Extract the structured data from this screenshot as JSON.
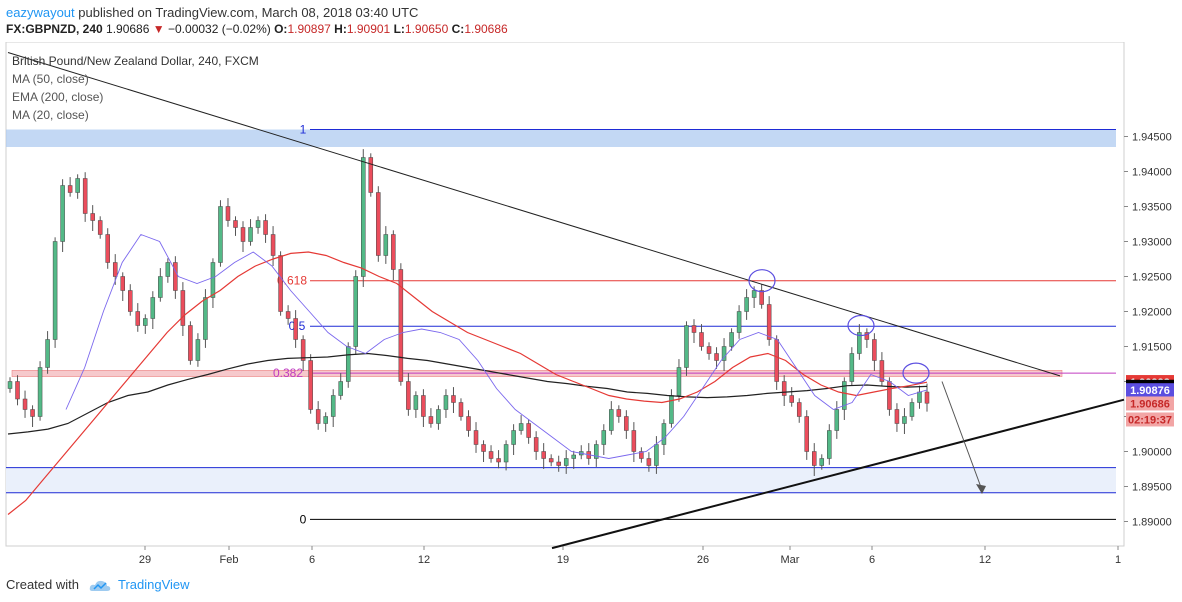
{
  "header": {
    "author": "eazywayout",
    "published_text": "published on TradingView.com, March 08, 2018 03:40 UTC",
    "symbol": "FX:GBPNZD, 240",
    "last_price": "1.90686",
    "change": "−0.00032 (−0.02%)",
    "open_label": "O:",
    "open": "1.90897",
    "high_label": "H:",
    "high": "1.90901",
    "low_label": "L:",
    "low": "1.90650",
    "close_label": "C:",
    "close": "1.90686"
  },
  "legend": {
    "title": "British Pound/New Zealand Dollar, 240, FXCM",
    "ma50": "MA (50, close)",
    "ema200": "EMA (200, close)",
    "ma20": "MA (20, close)"
  },
  "footer": {
    "created_with": "Created with",
    "brand": "TradingView"
  },
  "colors": {
    "bull": "#53b987",
    "bear": "#eb4d5c",
    "ma50": "#e53935",
    "ema200": "#222222",
    "ma20": "#7b68ee",
    "fib_1": "#1e2bd6",
    "fib_0618": "#e53935",
    "fib_05": "#1e2bd6",
    "fib_0382": "#c03cc0",
    "fib_0": "#000000"
  },
  "chart_data": {
    "type": "candlestick",
    "symbol": "GBPNZD",
    "timeframe": "240",
    "ylim": [
      1.8865,
      1.9585
    ],
    "y_ticks": [
      "1.89000",
      "1.89500",
      "1.90000",
      "1.90500",
      "1.91000",
      "1.91500",
      "1.92000",
      "1.92500",
      "1.93000",
      "1.93500",
      "1.94000",
      "1.94500"
    ],
    "x_ticks": [
      "29",
      "Feb",
      "6",
      "12",
      "19",
      "26",
      "Mar",
      "6",
      "12",
      "1"
    ],
    "fib_levels": [
      {
        "label": "1",
        "price": 1.946
      },
      {
        "label": "0.618",
        "price": 1.9244
      },
      {
        "label": "0.5",
        "price": 1.9179
      },
      {
        "label": "0.382",
        "price": 1.9112
      },
      {
        "label": "0",
        "price": 1.8903
      }
    ],
    "price_labels": [
      {
        "value": "1.90992",
        "color": "#e53935",
        "text_color": "#ffffff"
      },
      {
        "value": "1.90925",
        "color": "#000000",
        "text_color": "#ffffff"
      },
      {
        "value": "1.90876",
        "color": "#5b4ee0",
        "text_color": "#ffffff"
      },
      {
        "value": "1.90686",
        "color": "#f2a5a5",
        "text_color": "#c62828"
      },
      {
        "value": "02:19:37",
        "color": "#f2a5a5",
        "text_color": "#c62828"
      }
    ],
    "closes": [
      1.91,
      1.9075,
      1.906,
      1.905,
      1.912,
      1.916,
      1.93,
      1.938,
      1.937,
      1.939,
      1.934,
      1.933,
      1.931,
      1.927,
      1.925,
      1.923,
      1.92,
      1.918,
      1.919,
      1.922,
      1.925,
      1.927,
      1.923,
      1.918,
      1.913,
      1.916,
      1.922,
      1.927,
      1.935,
      1.933,
      1.932,
      1.93,
      1.932,
      1.933,
      1.931,
      1.928,
      1.92,
      1.919,
      1.916,
      1.913,
      1.906,
      1.904,
      1.905,
      1.908,
      1.91,
      1.915,
      1.925,
      1.942,
      1.937,
      1.928,
      1.931,
      1.926,
      1.91,
      1.906,
      1.908,
      1.905,
      1.904,
      1.906,
      1.908,
      1.907,
      1.905,
      1.903,
      1.901,
      1.9,
      1.899,
      1.8985,
      1.901,
      1.903,
      1.904,
      1.902,
      1.9,
      1.899,
      1.8985,
      1.898,
      1.899,
      1.8995,
      1.9,
      1.899,
      1.901,
      1.903,
      1.906,
      1.905,
      1.903,
      1.9,
      1.899,
      1.898,
      1.901,
      1.904,
      1.908,
      1.912,
      1.918,
      1.917,
      1.915,
      1.914,
      1.913,
      1.915,
      1.917,
      1.92,
      1.922,
      1.923,
      1.921,
      1.916,
      1.91,
      1.908,
      1.907,
      1.905,
      1.9,
      1.898,
      1.899,
      1.903,
      1.906,
      1.91,
      1.914,
      1.917,
      1.916,
      1.913,
      1.91,
      1.906,
      1.904,
      1.905,
      1.907,
      1.9085,
      1.9069
    ],
    "ma50": [
      1.891,
      1.893,
      1.896,
      1.899,
      1.902,
      1.905,
      1.908,
      1.911,
      1.914,
      1.917,
      1.9195,
      1.9215,
      1.923,
      1.925,
      1.9265,
      1.9275,
      1.9283,
      1.9285,
      1.928,
      1.927,
      1.9262,
      1.925,
      1.924,
      1.922,
      1.92,
      1.9185,
      1.917,
      1.916,
      1.915,
      1.914,
      1.9125,
      1.911,
      1.91,
      1.909,
      1.908,
      1.9075,
      1.9072,
      1.907,
      1.9075,
      1.9085,
      1.91,
      1.912,
      1.9135,
      1.914,
      1.913,
      1.911,
      1.9095,
      1.9085,
      1.908,
      1.9085,
      1.909,
      1.9094,
      1.9099
    ],
    "ema200": [
      1.9025,
      1.9028,
      1.9032,
      1.904,
      1.9055,
      1.907,
      1.908,
      1.9085,
      1.9095,
      1.9103,
      1.911,
      1.9118,
      1.9125,
      1.913,
      1.9133,
      1.9134,
      1.9135,
      1.9138,
      1.914,
      1.9137,
      1.9133,
      1.913,
      1.9125,
      1.912,
      1.9115,
      1.911,
      1.9105,
      1.91,
      1.9097,
      1.9093,
      1.909,
      1.9085,
      1.9083,
      1.908,
      1.9078,
      1.9077,
      1.9078,
      1.908,
      1.9083,
      1.9085,
      1.9087,
      1.909,
      1.9094,
      1.9095,
      1.9093,
      1.9092,
      1.9093
    ],
    "ma20": [
      1.906,
      1.912,
      1.92,
      1.927,
      1.931,
      1.93,
      1.925,
      1.924,
      1.925,
      1.927,
      1.9285,
      1.9265,
      1.923,
      1.92,
      1.917,
      1.915,
      1.914,
      1.916,
      1.917,
      1.9175,
      1.917,
      1.916,
      1.913,
      1.909,
      1.906,
      1.904,
      1.902,
      1.9,
      1.8995,
      1.899,
      1.8995,
      1.9,
      1.902,
      1.905,
      1.909,
      1.913,
      1.916,
      1.917,
      1.916,
      1.912,
      1.908,
      1.906,
      1.907,
      1.911,
      1.91,
      1.908,
      1.9088
    ]
  }
}
